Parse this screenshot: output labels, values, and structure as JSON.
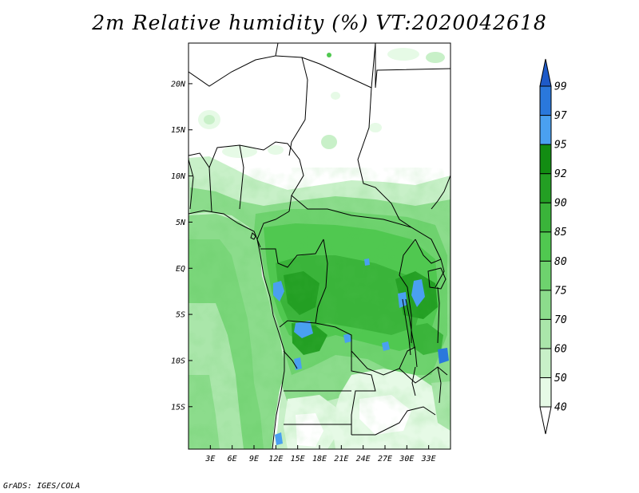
{
  "title": "2m Relative humidity (%) VT:2020042618",
  "credit": "GrADS: IGES/COLA",
  "map": {
    "lat_labels": [
      {
        "text": "20N",
        "lat": 20
      },
      {
        "text": "15N",
        "lat": 15
      },
      {
        "text": "10N",
        "lat": 10
      },
      {
        "text": "5N",
        "lat": 5
      },
      {
        "text": "EQ",
        "lat": 0
      },
      {
        "text": "5S",
        "lat": -5
      },
      {
        "text": "10S",
        "lat": -10
      },
      {
        "text": "15S",
        "lat": -15
      }
    ],
    "lon_labels": [
      {
        "text": "3E",
        "lon": 3
      },
      {
        "text": "6E",
        "lon": 6
      },
      {
        "text": "9E",
        "lon": 9
      },
      {
        "text": "12E",
        "lon": 12
      },
      {
        "text": "15E",
        "lon": 15
      },
      {
        "text": "18E",
        "lon": 18
      },
      {
        "text": "21E",
        "lon": 21
      },
      {
        "text": "24E",
        "lon": 24
      },
      {
        "text": "27E",
        "lon": 27
      },
      {
        "text": "30E",
        "lon": 30
      },
      {
        "text": "33E",
        "lon": 33
      }
    ]
  },
  "colorbar": {
    "levels": [
      "40",
      "50",
      "60",
      "70",
      "75",
      "80",
      "85",
      "90",
      "92",
      "95",
      "97",
      "99"
    ],
    "colors": [
      "#ffffff",
      "#e6fae6",
      "#c8f0c8",
      "#aae6aa",
      "#8cdc8c",
      "#6ed26e",
      "#50c850",
      "#3ab43a",
      "#239f23",
      "#128c12",
      "#4aa0f0",
      "#2a78dc",
      "#1e5ac8"
    ]
  }
}
